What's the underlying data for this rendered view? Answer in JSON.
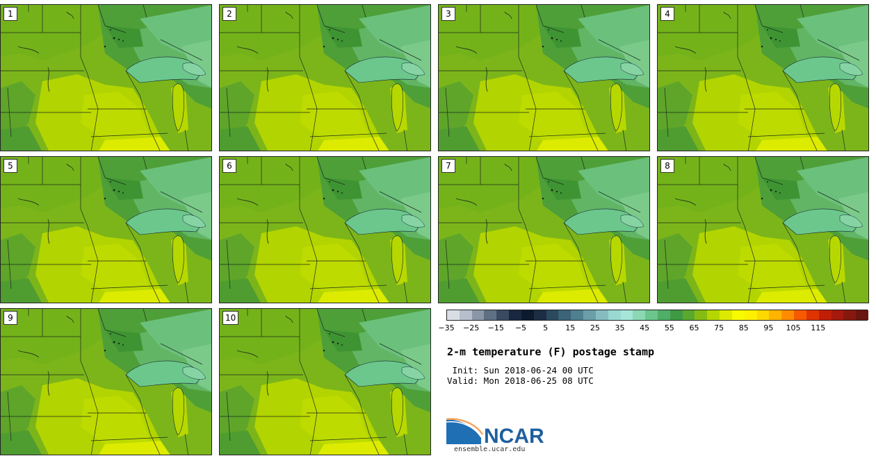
{
  "panels": [
    {
      "label": "1"
    },
    {
      "label": "2"
    },
    {
      "label": "3"
    },
    {
      "label": "4"
    },
    {
      "label": "5"
    },
    {
      "label": "6"
    },
    {
      "label": "7"
    },
    {
      "label": "8"
    },
    {
      "label": "9"
    },
    {
      "label": "10"
    }
  ],
  "colorbar": {
    "colors": [
      "#d9dee6",
      "#b6bfcb",
      "#8a97a8",
      "#5f6f84",
      "#3a4a60",
      "#1a2740",
      "#0d1a2e",
      "#1c2d44",
      "#2c4a5e",
      "#3c6478",
      "#4f8090",
      "#6a9fa8",
      "#86bcc0",
      "#9ad8d2",
      "#a6e6d8",
      "#8ad8b4",
      "#6cc58c",
      "#4fae68",
      "#3e9a44",
      "#5aa82e",
      "#86bc12",
      "#b5d600",
      "#dcea00",
      "#f8fa00",
      "#fff000",
      "#ffd800",
      "#ffb400",
      "#ff8c00",
      "#f55a00",
      "#e03400",
      "#c11e08",
      "#a51a0c",
      "#861810",
      "#6a1510"
    ],
    "ticks": [
      "−35",
      "−25",
      "−15",
      "−5",
      "5",
      "15",
      "25",
      "35",
      "45",
      "55",
      "65",
      "75",
      "85",
      "95",
      "105",
      "115"
    ]
  },
  "title": "2-m temperature (F) postage stamp",
  "init": " Init: Sun 2018-06-24 00 UTC",
  "valid": "Valid: Mon 2018-06-25 08 UTC",
  "logo": {
    "text": "NCAR",
    "url": "ensemble.ucar.edu"
  }
}
